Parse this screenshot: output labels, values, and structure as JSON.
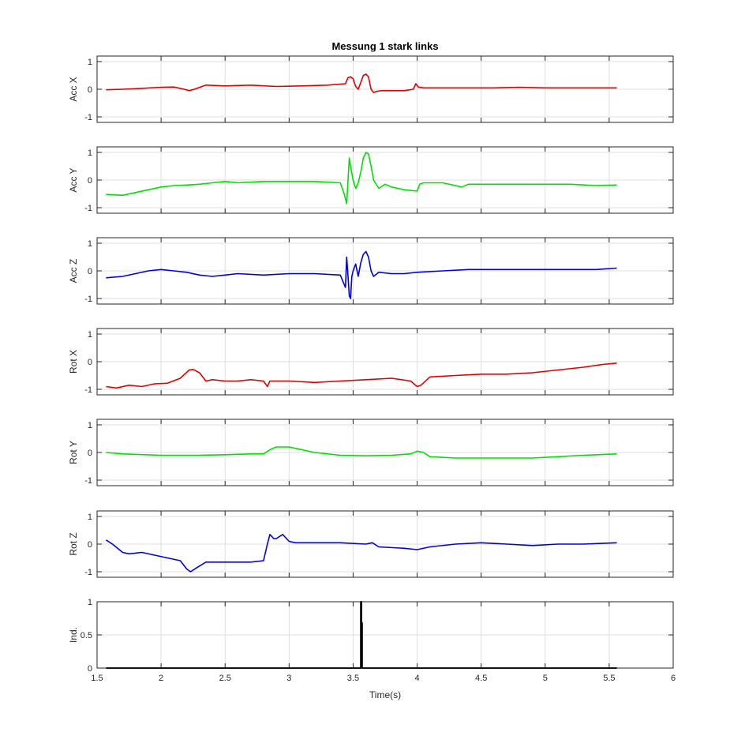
{
  "figure": {
    "title": "Messung 1 stark links",
    "xlabel": "Time(s)"
  },
  "chart_data": [
    {
      "type": "line",
      "title": "Messung 1 stark links",
      "ylabel": "Acc X",
      "xlim": [
        1.5,
        6
      ],
      "ylim": [
        -1.2,
        1.2
      ],
      "xticks": [],
      "yticks": [
        -1,
        0,
        1
      ],
      "grid": true,
      "color": "#e00000",
      "x": [
        1.57,
        1.7,
        1.8,
        2.0,
        2.1,
        2.18,
        2.22,
        2.26,
        2.35,
        2.5,
        2.7,
        2.9,
        3.1,
        3.3,
        3.44,
        3.46,
        3.48,
        3.5,
        3.52,
        3.54,
        3.56,
        3.58,
        3.6,
        3.62,
        3.64,
        3.66,
        3.68,
        3.72,
        3.8,
        3.9,
        3.97,
        3.99,
        4.01,
        4.05,
        4.3,
        4.6,
        4.8,
        5.0,
        5.2,
        5.4,
        5.56
      ],
      "y": [
        -0.02,
        0.0,
        0.02,
        0.07,
        0.08,
        0.0,
        -0.05,
        0.0,
        0.15,
        0.12,
        0.15,
        0.1,
        0.12,
        0.15,
        0.2,
        0.42,
        0.45,
        0.38,
        0.1,
        0.0,
        0.25,
        0.5,
        0.55,
        0.45,
        0.0,
        -0.12,
        -0.08,
        -0.05,
        -0.05,
        -0.05,
        0.0,
        0.2,
        0.08,
        0.05,
        0.05,
        0.05,
        0.07,
        0.05,
        0.05,
        0.05,
        0.05
      ]
    },
    {
      "type": "line",
      "ylabel": "Acc Y",
      "xlim": [
        1.5,
        6
      ],
      "ylim": [
        -1.2,
        1.2
      ],
      "xticks": [],
      "yticks": [
        -1,
        0,
        1
      ],
      "grid": true,
      "color": "#00e000",
      "x": [
        1.57,
        1.7,
        1.8,
        1.9,
        2.0,
        2.1,
        2.2,
        2.3,
        2.4,
        2.5,
        2.6,
        2.8,
        3.0,
        3.2,
        3.4,
        3.43,
        3.45,
        3.46,
        3.47,
        3.48,
        3.5,
        3.52,
        3.54,
        3.56,
        3.58,
        3.6,
        3.62,
        3.64,
        3.66,
        3.7,
        3.75,
        3.8,
        3.9,
        4.0,
        4.02,
        4.05,
        4.2,
        4.35,
        4.4,
        4.6,
        4.8,
        5.0,
        5.2,
        5.4,
        5.56
      ],
      "y": [
        -0.52,
        -0.55,
        -0.45,
        -0.35,
        -0.25,
        -0.2,
        -0.18,
        -0.15,
        -0.1,
        -0.05,
        -0.1,
        -0.05,
        -0.05,
        -0.05,
        -0.1,
        -0.5,
        -0.85,
        0.0,
        0.8,
        0.5,
        0.0,
        -0.3,
        -0.1,
        0.3,
        0.8,
        1.0,
        0.95,
        0.5,
        0.0,
        -0.3,
        -0.15,
        -0.25,
        -0.35,
        -0.4,
        -0.15,
        -0.1,
        -0.1,
        -0.25,
        -0.15,
        -0.15,
        -0.15,
        -0.15,
        -0.15,
        -0.2,
        -0.18
      ]
    },
    {
      "type": "line",
      "ylabel": "Acc Z",
      "xlim": [
        1.5,
        6
      ],
      "ylim": [
        -1.2,
        1.2
      ],
      "xticks": [],
      "yticks": [
        -1,
        0,
        1
      ],
      "grid": true,
      "color": "#0000e0",
      "x": [
        1.57,
        1.7,
        1.8,
        1.9,
        2.0,
        2.1,
        2.2,
        2.3,
        2.4,
        2.5,
        2.6,
        2.8,
        3.0,
        3.2,
        3.4,
        3.44,
        3.45,
        3.46,
        3.47,
        3.48,
        3.49,
        3.5,
        3.52,
        3.54,
        3.56,
        3.58,
        3.6,
        3.62,
        3.64,
        3.66,
        3.7,
        3.8,
        3.9,
        4.0,
        4.2,
        4.4,
        4.6,
        4.8,
        5.0,
        5.2,
        5.4,
        5.56
      ],
      "y": [
        -0.25,
        -0.2,
        -0.1,
        0.0,
        0.05,
        0.0,
        -0.05,
        -0.15,
        -0.2,
        -0.15,
        -0.1,
        -0.15,
        -0.1,
        -0.1,
        -0.15,
        -0.6,
        0.5,
        -0.2,
        -0.9,
        -1.0,
        -0.2,
        0.0,
        0.25,
        -0.2,
        0.3,
        0.6,
        0.7,
        0.5,
        0.0,
        -0.2,
        -0.05,
        -0.1,
        -0.1,
        -0.05,
        0.0,
        0.05,
        0.05,
        0.05,
        0.05,
        0.05,
        0.05,
        0.1
      ]
    },
    {
      "type": "line",
      "ylabel": "Rot X",
      "xlim": [
        1.5,
        6
      ],
      "ylim": [
        -1.2,
        1.2
      ],
      "xticks": [],
      "yticks": [
        -1,
        0,
        1
      ],
      "grid": true,
      "color": "#e00000",
      "x": [
        1.57,
        1.65,
        1.75,
        1.85,
        1.95,
        2.05,
        2.15,
        2.22,
        2.25,
        2.3,
        2.35,
        2.4,
        2.5,
        2.6,
        2.7,
        2.8,
        2.83,
        2.85,
        2.9,
        3.0,
        3.2,
        3.4,
        3.6,
        3.8,
        3.95,
        4.0,
        4.03,
        4.1,
        4.3,
        4.5,
        4.7,
        4.9,
        5.1,
        5.3,
        5.45,
        5.56
      ],
      "y": [
        -0.9,
        -0.95,
        -0.85,
        -0.9,
        -0.8,
        -0.78,
        -0.6,
        -0.3,
        -0.28,
        -0.4,
        -0.7,
        -0.65,
        -0.7,
        -0.7,
        -0.65,
        -0.7,
        -0.9,
        -0.7,
        -0.7,
        -0.7,
        -0.75,
        -0.7,
        -0.65,
        -0.6,
        -0.7,
        -0.9,
        -0.85,
        -0.55,
        -0.5,
        -0.45,
        -0.45,
        -0.4,
        -0.3,
        -0.2,
        -0.1,
        -0.05
      ]
    },
    {
      "type": "line",
      "ylabel": "Rot Y",
      "xlim": [
        1.5,
        6
      ],
      "ylim": [
        -1.2,
        1.2
      ],
      "xticks": [],
      "yticks": [
        -1,
        0,
        1
      ],
      "grid": true,
      "color": "#00e000",
      "x": [
        1.57,
        1.7,
        2.0,
        2.3,
        2.5,
        2.7,
        2.8,
        2.85,
        2.9,
        3.0,
        3.1,
        3.2,
        3.4,
        3.6,
        3.8,
        3.95,
        4.0,
        4.05,
        4.1,
        4.3,
        4.6,
        4.9,
        5.1,
        5.3,
        5.56
      ],
      "y": [
        0.0,
        -0.05,
        -0.1,
        -0.1,
        -0.08,
        -0.05,
        -0.05,
        0.1,
        0.2,
        0.2,
        0.1,
        0.0,
        -0.1,
        -0.12,
        -0.1,
        -0.05,
        0.05,
        0.0,
        -0.15,
        -0.2,
        -0.2,
        -0.2,
        -0.15,
        -0.1,
        -0.05
      ]
    },
    {
      "type": "line",
      "ylabel": "Rot Z",
      "xlim": [
        1.5,
        6
      ],
      "ylim": [
        -1.2,
        1.2
      ],
      "xticks": [],
      "yticks": [
        -1,
        0,
        1
      ],
      "grid": true,
      "color": "#0000e0",
      "x": [
        1.57,
        1.62,
        1.7,
        1.75,
        1.85,
        1.95,
        2.05,
        2.15,
        2.2,
        2.23,
        2.28,
        2.35,
        2.5,
        2.7,
        2.8,
        2.83,
        2.85,
        2.88,
        2.9,
        2.95,
        3.0,
        3.05,
        3.2,
        3.4,
        3.6,
        3.65,
        3.7,
        3.9,
        4.0,
        4.1,
        4.3,
        4.5,
        4.7,
        4.9,
        5.1,
        5.3,
        5.56
      ],
      "y": [
        0.15,
        0.0,
        -0.3,
        -0.35,
        -0.3,
        -0.4,
        -0.5,
        -0.6,
        -0.9,
        -1.0,
        -0.85,
        -0.65,
        -0.65,
        -0.65,
        -0.6,
        0.0,
        0.35,
        0.2,
        0.2,
        0.35,
        0.1,
        0.05,
        0.05,
        0.05,
        0.0,
        0.05,
        -0.1,
        -0.15,
        -0.2,
        -0.1,
        0.0,
        0.05,
        0.0,
        -0.05,
        0.0,
        0.0,
        0.05
      ]
    },
    {
      "type": "line",
      "ylabel": "Ind.",
      "xlabel": "Time(s)",
      "xlim": [
        1.5,
        6
      ],
      "ylim": [
        0,
        1
      ],
      "xticks": [
        1.5,
        2,
        2.5,
        3,
        3.5,
        4,
        4.5,
        5,
        5.5,
        6
      ],
      "yticks": [
        0,
        0.5,
        1
      ],
      "grid": true,
      "color": "#000000",
      "x": [
        1.57,
        3.56,
        3.56,
        3.565,
        3.565,
        3.57,
        3.57,
        5.56
      ],
      "y": [
        0,
        0,
        1,
        1,
        0.68,
        0.68,
        0,
        0
      ]
    }
  ]
}
